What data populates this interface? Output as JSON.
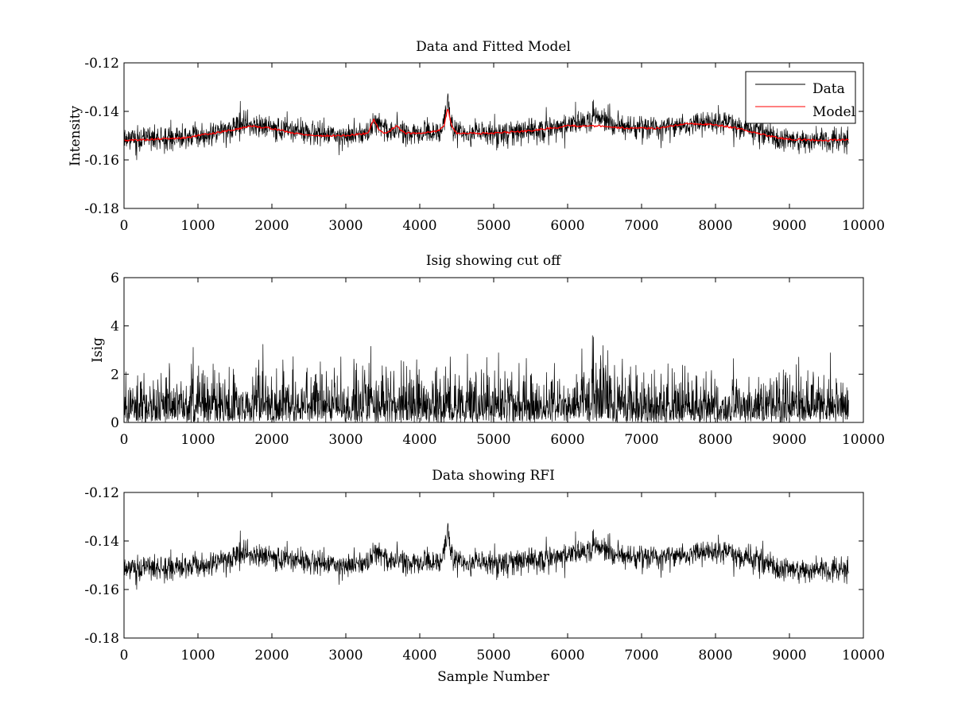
{
  "figure": {
    "xlabel": "Sample Number"
  },
  "chart_data": [
    {
      "type": "line",
      "title": "Data and Fitted Model",
      "xlabel": "",
      "ylabel": "Intensity",
      "xlim": [
        0,
        10000
      ],
      "ylim": [
        -0.18,
        -0.12
      ],
      "xticks": [
        0,
        1000,
        2000,
        3000,
        4000,
        5000,
        6000,
        7000,
        8000,
        9000,
        10000
      ],
      "xtick_labels": [
        "0",
        "1000",
        "2000",
        "3000",
        "4000",
        "5000",
        "6000",
        "7000",
        "8000",
        "9000",
        "10000"
      ],
      "yticks": [
        -0.18,
        -0.16,
        -0.14,
        -0.12
      ],
      "ytick_labels": [
        "-0.18",
        "-0.16",
        "-0.14",
        "-0.12"
      ],
      "legend": {
        "position": "top-right",
        "entries": [
          "Data",
          "Model"
        ]
      },
      "series": [
        {
          "name": "Data",
          "color": "#000000",
          "kind": "noisy",
          "baseline": {
            "x": [
              0,
              800,
              1200,
              1700,
              2200,
              2800,
              3300,
              3380,
              3450,
              3600,
              3700,
              3800,
              4000,
              4300,
              4380,
              4450,
              4600,
              5000,
              5500,
              6000,
              6400,
              6700,
              7200,
              7800,
              8200,
              8600,
              8900,
              9300,
              9800
            ],
            "y": [
              -0.151,
              -0.151,
              -0.149,
              -0.145,
              -0.148,
              -0.15,
              -0.15,
              -0.144,
              -0.146,
              -0.149,
              -0.147,
              -0.149,
              -0.149,
              -0.148,
              -0.136,
              -0.147,
              -0.149,
              -0.149,
              -0.148,
              -0.146,
              -0.142,
              -0.146,
              -0.147,
              -0.145,
              -0.145,
              -0.148,
              -0.152,
              -0.152,
              -0.151
            ]
          },
          "noise_amplitude": 0.0028,
          "spike_count": 55,
          "spike_amplitude": 0.006,
          "seed": 11,
          "n_points": 2400
        },
        {
          "name": "Model",
          "color": "#ff0000",
          "kind": "smooth",
          "x": [
            0,
            800,
            1200,
            1500,
            1700,
            2000,
            2300,
            2600,
            3000,
            3300,
            3380,
            3450,
            3550,
            3680,
            3800,
            4000,
            4250,
            4330,
            4380,
            4430,
            4500,
            5000,
            5500,
            6000,
            6400,
            6800,
            7200,
            7600,
            8000,
            8300,
            8700,
            9000,
            9500,
            9800
          ],
          "y": [
            -0.152,
            -0.151,
            -0.149,
            -0.1475,
            -0.146,
            -0.147,
            -0.149,
            -0.15,
            -0.15,
            -0.149,
            -0.143,
            -0.148,
            -0.149,
            -0.146,
            -0.149,
            -0.149,
            -0.148,
            -0.146,
            -0.138,
            -0.146,
            -0.149,
            -0.149,
            -0.148,
            -0.146,
            -0.146,
            -0.147,
            -0.147,
            -0.145,
            -0.1455,
            -0.147,
            -0.15,
            -0.1515,
            -0.152,
            -0.1515
          ],
          "jitter": 0.0004,
          "seed": 5
        }
      ]
    },
    {
      "type": "line",
      "title": "Isig showing cut off",
      "xlabel": "",
      "ylabel": "Isig",
      "xlim": [
        0,
        10000
      ],
      "ylim": [
        0,
        6
      ],
      "xticks": [
        0,
        1000,
        2000,
        3000,
        4000,
        5000,
        6000,
        7000,
        8000,
        9000,
        10000
      ],
      "xtick_labels": [
        "0",
        "1000",
        "2000",
        "3000",
        "4000",
        "5000",
        "6000",
        "7000",
        "8000",
        "9000",
        "10000"
      ],
      "yticks": [
        0,
        2,
        4,
        6
      ],
      "ytick_labels": [
        "0",
        "2",
        "4",
        "6"
      ],
      "series": [
        {
          "name": "Isig",
          "color": "#000000",
          "kind": "abs-noise",
          "n_points": 2400,
          "x_max": 9800,
          "scale": 0.95,
          "max_value": 3.6,
          "bump": {
            "center": 6400,
            "width": 250,
            "gain": 1.4
          },
          "seed": 23
        }
      ]
    },
    {
      "type": "line",
      "title": "Data showing RFI",
      "xlabel": "Sample Number",
      "ylabel": "",
      "xlim": [
        0,
        10000
      ],
      "ylim": [
        -0.18,
        -0.12
      ],
      "xticks": [
        0,
        1000,
        2000,
        3000,
        4000,
        5000,
        6000,
        7000,
        8000,
        9000,
        10000
      ],
      "xtick_labels": [
        "0",
        "1000",
        "2000",
        "3000",
        "4000",
        "5000",
        "6000",
        "7000",
        "8000",
        "9000",
        "10000"
      ],
      "yticks": [
        -0.18,
        -0.16,
        -0.14,
        -0.12
      ],
      "ytick_labels": [
        "-0.18",
        "-0.16",
        "-0.14",
        "-0.12"
      ],
      "series": [
        {
          "name": "Data",
          "color": "#000000",
          "kind": "noisy",
          "baseline": {
            "x": [
              0,
              800,
              1200,
              1700,
              2200,
              2800,
              3300,
              3380,
              3450,
              3600,
              3700,
              3800,
              4000,
              4300,
              4380,
              4450,
              4600,
              5000,
              5500,
              6000,
              6400,
              6700,
              7200,
              7800,
              8200,
              8600,
              8900,
              9300,
              9800
            ],
            "y": [
              -0.151,
              -0.151,
              -0.149,
              -0.145,
              -0.148,
              -0.15,
              -0.15,
              -0.144,
              -0.146,
              -0.149,
              -0.147,
              -0.149,
              -0.149,
              -0.148,
              -0.136,
              -0.147,
              -0.149,
              -0.149,
              -0.148,
              -0.146,
              -0.142,
              -0.146,
              -0.147,
              -0.145,
              -0.145,
              -0.148,
              -0.152,
              -0.152,
              -0.151
            ]
          },
          "noise_amplitude": 0.0028,
          "spike_count": 55,
          "spike_amplitude": 0.006,
          "seed": 11,
          "n_points": 2400
        }
      ]
    }
  ]
}
